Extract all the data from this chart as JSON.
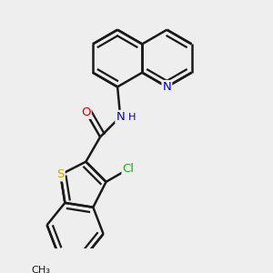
{
  "background_color": "#eeeeee",
  "bond_color": "#1a1a1a",
  "bond_width": 1.8,
  "dbo": 0.055,
  "atom_colors": {
    "S": "#ccaa00",
    "N": "#0000cc",
    "O": "#dd0000",
    "Cl": "#22aa22",
    "C": "#1a1a1a"
  },
  "font_size": 9.5,
  "fig_width": 3.0,
  "fig_height": 3.0,
  "dpi": 100,
  "xlim": [
    0.3,
    2.8
  ],
  "ylim": [
    0.2,
    2.8
  ]
}
